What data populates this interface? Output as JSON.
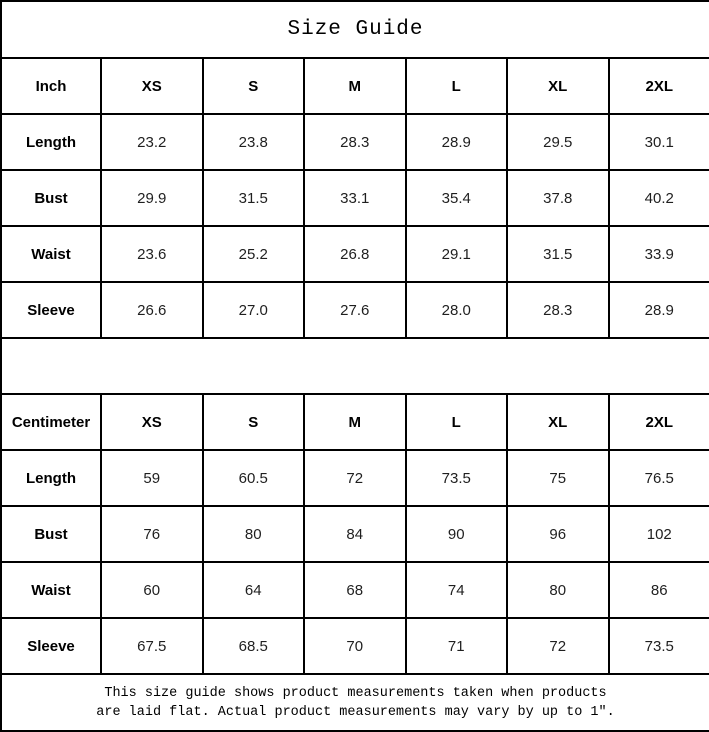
{
  "title": "Size Guide",
  "tables": [
    {
      "unit_label": "Inch",
      "columns": [
        "XS",
        "S",
        "M",
        "L",
        "XL",
        "2XL"
      ],
      "rows": [
        {
          "label": "Length",
          "values": [
            "23.2",
            "23.8",
            "28.3",
            "28.9",
            "29.5",
            "30.1"
          ]
        },
        {
          "label": "Bust",
          "values": [
            "29.9",
            "31.5",
            "33.1",
            "35.4",
            "37.8",
            "40.2"
          ]
        },
        {
          "label": "Waist",
          "values": [
            "23.6",
            "25.2",
            "26.8",
            "29.1",
            "31.5",
            "33.9"
          ]
        },
        {
          "label": "Sleeve",
          "values": [
            "26.6",
            "27.0",
            "27.6",
            "28.0",
            "28.3",
            "28.9"
          ]
        }
      ]
    },
    {
      "unit_label": "Centimeter",
      "columns": [
        "XS",
        "S",
        "M",
        "L",
        "XL",
        "2XL"
      ],
      "rows": [
        {
          "label": "Length",
          "values": [
            "59",
            "60.5",
            "72",
            "73.5",
            "75",
            "76.5"
          ]
        },
        {
          "label": "Bust",
          "values": [
            "76",
            "80",
            "84",
            "90",
            "96",
            "102"
          ]
        },
        {
          "label": "Waist",
          "values": [
            "60",
            "64",
            "68",
            "74",
            "80",
            "86"
          ]
        },
        {
          "label": "Sleeve",
          "values": [
            "67.5",
            "68.5",
            "70",
            "71",
            "72",
            "73.5"
          ]
        }
      ]
    }
  ],
  "footer": {
    "line1": "This size guide shows product measurements taken when products",
    "line2": "are laid flat. Actual product measurements may vary by up to 1″."
  }
}
